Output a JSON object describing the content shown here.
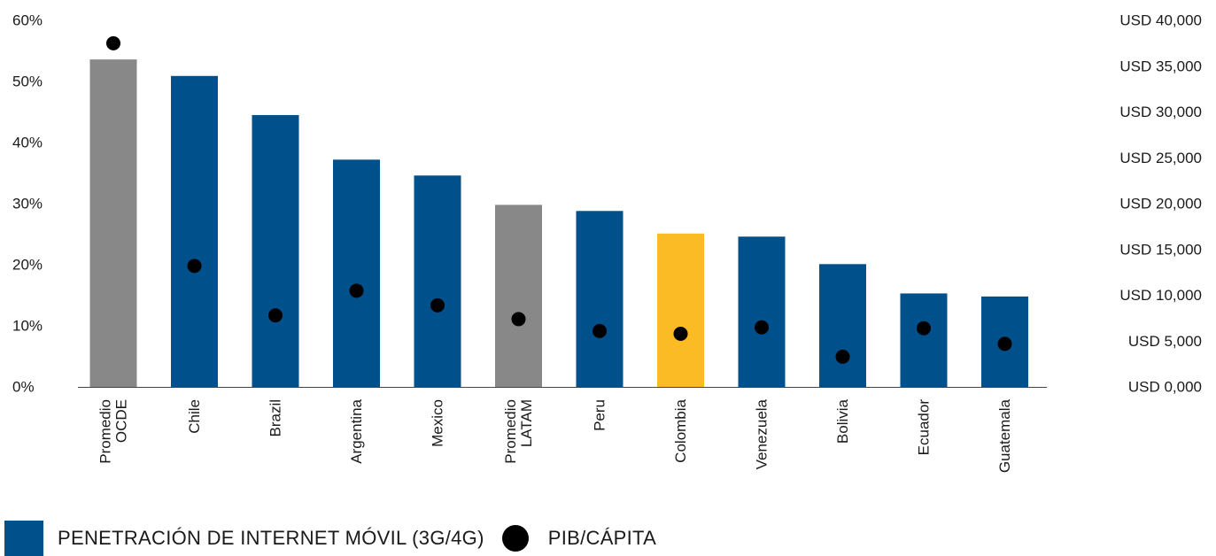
{
  "chart_data": {
    "type": "bar",
    "categories": [
      [
        "Promedio",
        "OCDE"
      ],
      [
        "Chile"
      ],
      [
        "Brazil"
      ],
      [
        "Argentina"
      ],
      [
        "Mexico"
      ],
      [
        "Promedio",
        "LATAM"
      ],
      [
        "Peru"
      ],
      [
        "Colombia"
      ],
      [
        "Venezuela"
      ],
      [
        "Bolivia"
      ],
      [
        "Ecuador"
      ],
      [
        "Guatemala"
      ]
    ],
    "series": [
      {
        "name": "PENETRACIÓN DE INTERNET MÓVIL (3G/4G)",
        "axis": "left",
        "values": [
          53.6,
          50.9,
          44.5,
          37.2,
          34.6,
          29.8,
          28.8,
          25.1,
          24.6,
          20.1,
          15.3,
          14.8
        ]
      },
      {
        "name": "PIB/CÁPITA",
        "axis": "right",
        "values": [
          37500,
          13200,
          7800,
          10500,
          8900,
          7400,
          6100,
          5800,
          6500,
          3300,
          6400,
          4700
        ]
      }
    ],
    "bar_colors": [
      "#888888",
      "#00508c",
      "#00508c",
      "#00508c",
      "#00508c",
      "#888888",
      "#00508c",
      "#fbbb25",
      "#00508c",
      "#00508c",
      "#00508c",
      "#00508c"
    ],
    "dot_color": "#000000",
    "y_left": {
      "min": 0,
      "max": 60,
      "ticks": [
        "0%",
        "10%",
        "20%",
        "30%",
        "40%",
        "50%",
        "60%"
      ]
    },
    "y_right": {
      "min": 0,
      "max": 40000,
      "ticks": [
        "USD 0,000",
        "USD 5,000",
        "USD 10,000",
        "USD 15,000",
        "USD 20,000",
        "USD 25,000",
        "USD 30,000",
        "USD 35,000",
        "USD 40,000"
      ]
    },
    "grid": false,
    "legend_position": "bottom-left"
  },
  "legend": {
    "bar_label": "PENETRACIÓN DE INTERNET MÓVIL (3G/4G)",
    "dot_label": "PIB/CÁPITA",
    "bar_color": "#00508c",
    "dot_color": "#000000"
  }
}
